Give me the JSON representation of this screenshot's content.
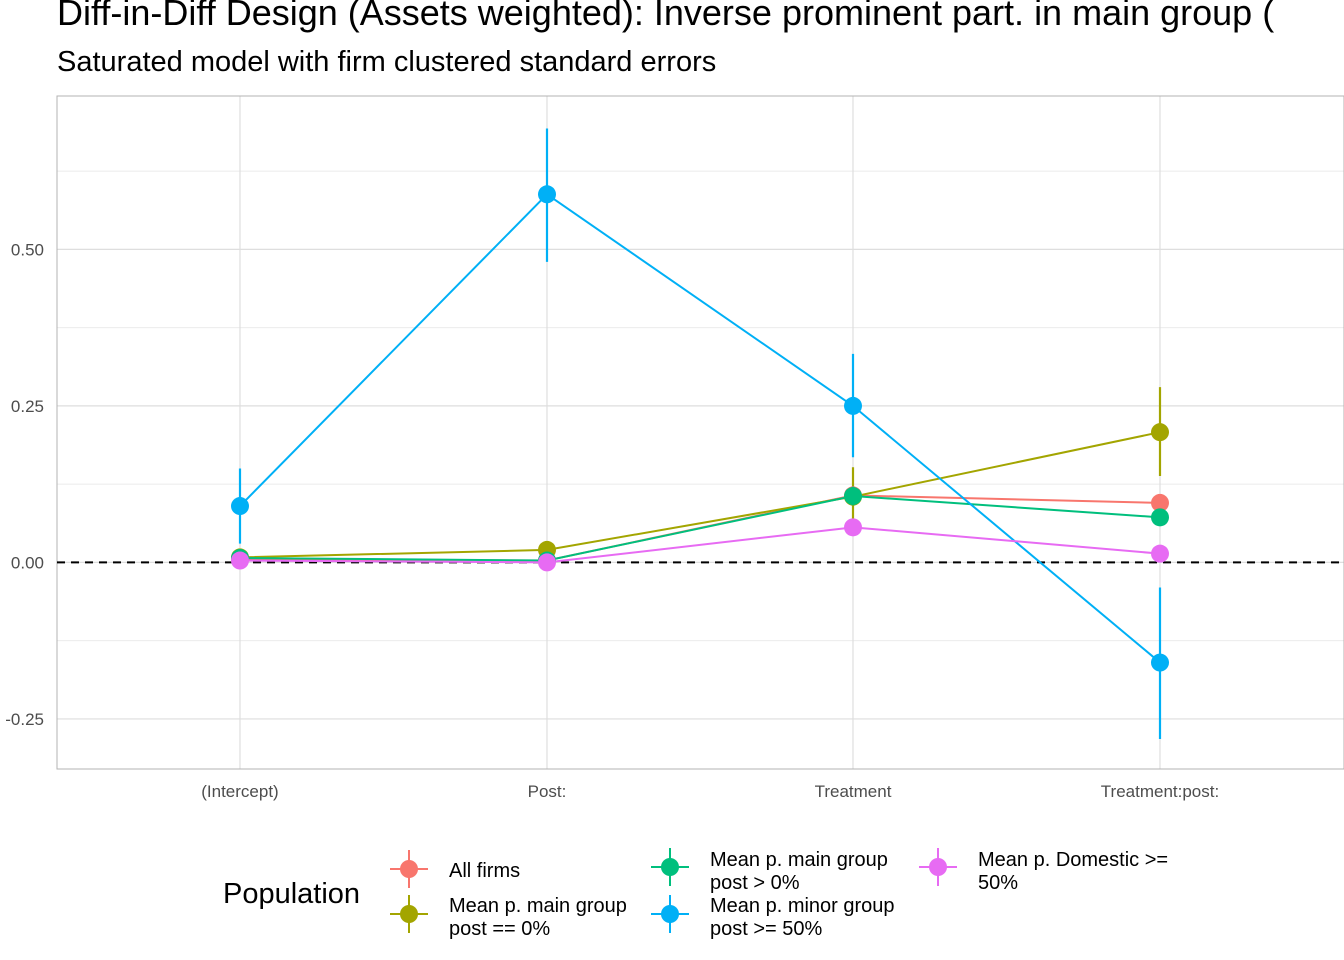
{
  "chart_data": {
    "type": "line",
    "title": "Diff-in-Diff Design (Assets weighted): Inverse prominent part. in main group (",
    "subtitle": "Saturated model with firm clustered standard errors",
    "xlabel": "",
    "ylabel": "",
    "categories": [
      "(Intercept)",
      "Post:",
      "Treatment",
      "Treatment:post:"
    ],
    "y_ticks": [
      -0.25,
      0.0,
      0.25,
      0.5
    ],
    "y_tick_labels": [
      "-0.25",
      "0.00",
      "0.25",
      "0.50"
    ],
    "ylim": [
      -0.33,
      0.745
    ],
    "reference_line": 0,
    "grid": true,
    "legend": {
      "title": "Population",
      "position": "bottom"
    },
    "series": [
      {
        "name": "All firms",
        "color": "#F8766D",
        "values": [
          0.005,
          0.003,
          0.107,
          0.095
        ],
        "lower": [
          0.003,
          0.001,
          0.09,
          0.085
        ],
        "upper": [
          0.008,
          0.005,
          0.12,
          0.105
        ]
      },
      {
        "name": "Mean p. main group post == 0%",
        "color": "#A3A500",
        "values": [
          0.008,
          0.02,
          0.105,
          0.208
        ],
        "lower": [
          0.004,
          0.015,
          0.065,
          0.138
        ],
        "upper": [
          0.012,
          0.025,
          0.152,
          0.28
        ]
      },
      {
        "name": "Mean p. main group post > 0%",
        "color": "#00BF7D",
        "values": [
          0.007,
          0.003,
          0.106,
          0.072
        ],
        "lower": [
          0.003,
          0.0,
          0.09,
          0.06
        ],
        "upper": [
          0.011,
          0.006,
          0.122,
          0.084
        ]
      },
      {
        "name": "Mean p. minor group post >= 50%",
        "color": "#00B0F6",
        "values": [
          0.09,
          0.588,
          0.25,
          -0.16
        ],
        "lower": [
          0.03,
          0.48,
          0.168,
          -0.282
        ],
        "upper": [
          0.15,
          0.693,
          0.333,
          -0.04
        ]
      },
      {
        "name": "Mean p. Domestic >= 50%",
        "color": "#E76BF3",
        "values": [
          0.003,
          0.0,
          0.056,
          0.014
        ],
        "lower": [
          0.001,
          -0.002,
          0.05,
          0.01
        ],
        "upper": [
          0.005,
          0.002,
          0.062,
          0.018
        ]
      }
    ]
  },
  "legend_items": [
    {
      "lines": [
        "All firms"
      ],
      "color": "#F8766D"
    },
    {
      "lines": [
        "Mean p. main group",
        "post == 0%"
      ],
      "color": "#A3A500"
    },
    {
      "lines": [
        "Mean p. main group",
        "post > 0%"
      ],
      "color": "#00BF7D"
    },
    {
      "lines": [
        "Mean p. minor group",
        "post >= 50%"
      ],
      "color": "#00B0F6"
    },
    {
      "lines": [
        "Mean p. Domestic >=",
        "50%"
      ],
      "color": "#E76BF3"
    }
  ]
}
